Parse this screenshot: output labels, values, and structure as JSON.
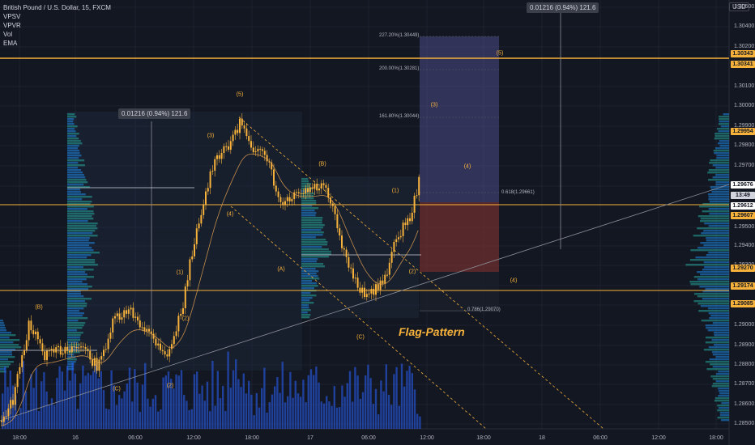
{
  "legend": {
    "symbol": "British Pound / U.S. Dollar, 15, FXCM",
    "indicators": [
      "VPSV",
      "VPVR",
      "Vol",
      "EMA"
    ]
  },
  "currency": "USD",
  "measure_label": "0.01216 (0.94%) 121.6",
  "y_axis": {
    "ticks": [
      "1.30500",
      "1.30400",
      "1.30200",
      "1.30100",
      "1.30000",
      "1.29900",
      "1.29800",
      "1.29700",
      "1.29600",
      "1.29500",
      "1.29400",
      "1.29300",
      "1.29200",
      "1.29100",
      "1.29000",
      "1.28900",
      "1.28800",
      "1.28700",
      "1.28600",
      "1.28500"
    ],
    "tags": [
      {
        "text": "1.30343",
        "color": "#f7b23b"
      },
      {
        "text": "1.30341",
        "color": "#f7b23b"
      },
      {
        "text": "1.29954",
        "color": "#f7b23b"
      },
      {
        "text": "1.29676",
        "color": "#ffffff"
      },
      {
        "text": "13:49",
        "color": "#131722"
      },
      {
        "text": "1.29612",
        "color": "#131722"
      },
      {
        "text": "1.29607",
        "color": "#f7b23b"
      },
      {
        "text": "1.29270",
        "color": "#f7b23b"
      },
      {
        "text": "1.29174",
        "color": "#f7b23b"
      },
      {
        "text": "1.29085",
        "color": "#f7b23b"
      }
    ]
  },
  "x_axis": [
    "18:00",
    "16",
    "06:00",
    "12:00",
    "18:00",
    "17",
    "06:00",
    "12:00",
    "18:00",
    "18",
    "06:00",
    "12:00",
    "18:00"
  ],
  "fib_labels": [
    "227.20%(1.30449)",
    "200.00%(1.30281)",
    "161.80%(1.30044)",
    "0.618(1.29661)",
    "0.786(1.29070)"
  ],
  "wave_labels": [
    "(5)",
    "(3)",
    "(4)",
    "(1)",
    "(2)",
    "(B)",
    "(A)",
    "(C)",
    "(1)",
    "(2)",
    "(3)",
    "(4)",
    "(5)",
    "(4)",
    "(B)",
    "(C)",
    "(C)",
    "(2)",
    "(1)",
    "(2)"
  ],
  "annotation": "Flag-Pattern",
  "colors": {
    "background": "#131722",
    "candle": "#f7b23b",
    "volume": "#2962ff",
    "profile": "#1e88e5",
    "horizontal_line": "#f7b23b",
    "target_box": "#5b5a9e",
    "stop_box": "#7a3a3a"
  }
}
